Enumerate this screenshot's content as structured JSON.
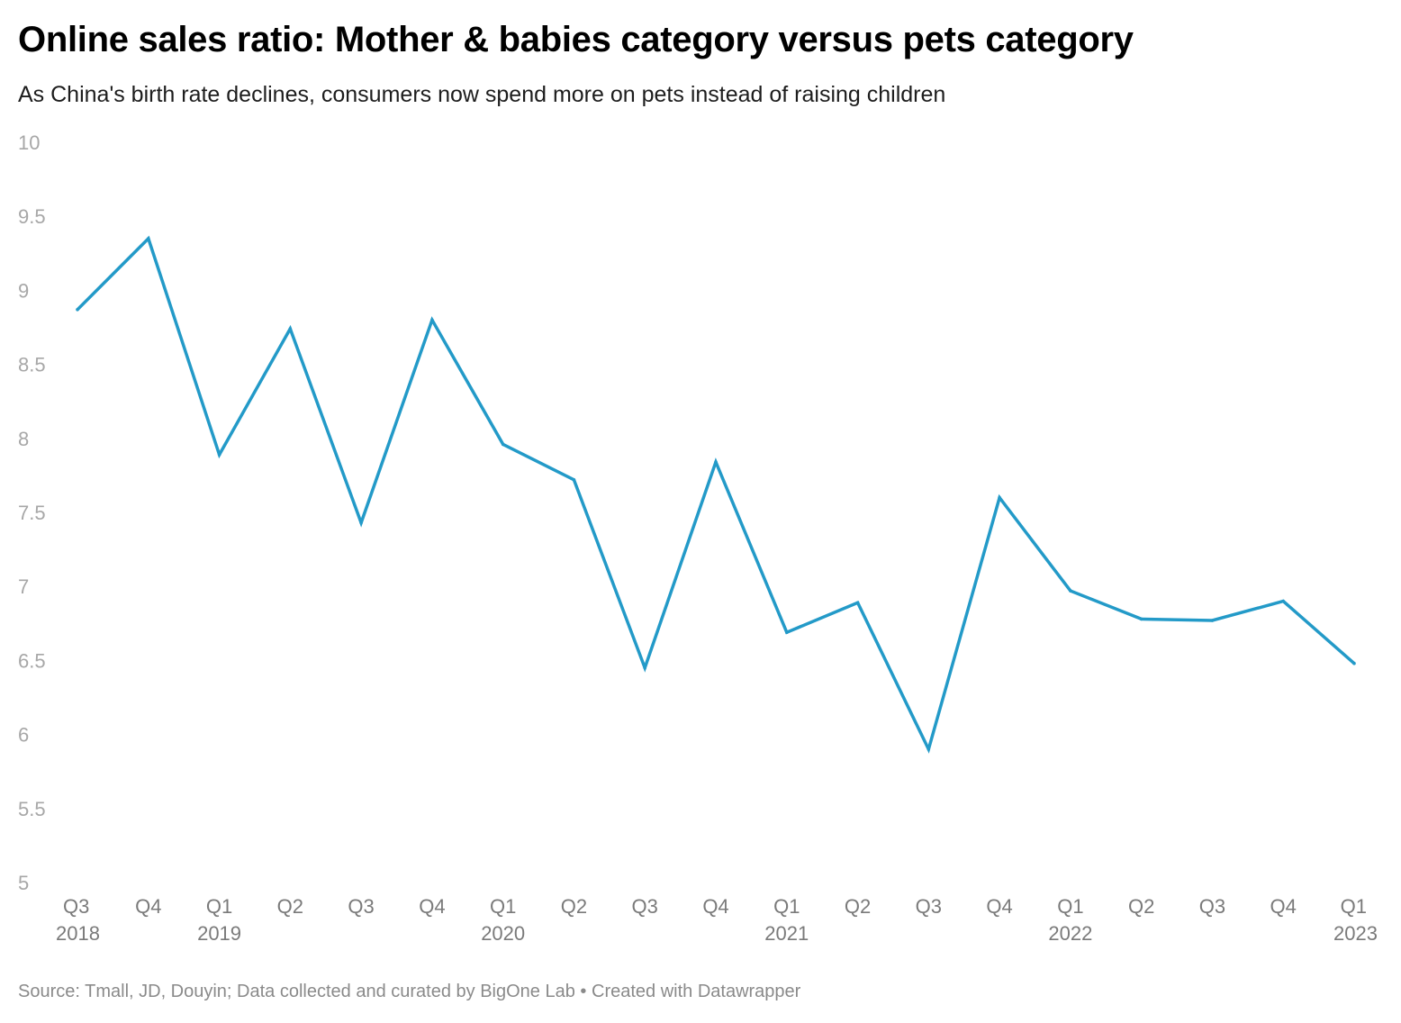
{
  "header": {
    "title": "Online sales ratio: Mother & babies category versus pets category",
    "subtitle": "As China's birth rate declines, consumers now spend more on pets instead of raising children"
  },
  "footer": {
    "source": "Source: Tmall, JD, Douyin; Data collected and curated by BigOne Lab",
    "separator": "•",
    "credit": "Created with Datawrapper"
  },
  "chart_data": {
    "type": "line",
    "title": "Online sales ratio: Mother & babies category versus pets category",
    "subtitle": "As China's birth rate declines, consumers now spend more on pets instead of raising children",
    "xlabel": "",
    "ylabel": "",
    "ylim": [
      5,
      10
    ],
    "yticks": [
      "10",
      "9.5",
      "9",
      "8.5",
      "8",
      "7.5",
      "7",
      "6.5",
      "6",
      "5.5",
      "5"
    ],
    "grid": false,
    "legend": "none",
    "line_color": "#239ac8",
    "categories": [
      "Q3",
      "Q4",
      "Q1",
      "Q2",
      "Q3",
      "Q4",
      "Q1",
      "Q2",
      "Q3",
      "Q4",
      "Q1",
      "Q2",
      "Q3",
      "Q4",
      "Q1",
      "Q2",
      "Q3",
      "Q4",
      "Q1"
    ],
    "year_labels": [
      "2018",
      "",
      "2019",
      "",
      "",
      "",
      "2020",
      "",
      "",
      "",
      "2021",
      "",
      "",
      "",
      "2022",
      "",
      "",
      "",
      "2023"
    ],
    "series": [
      {
        "name": "Online sales ratio",
        "values": [
          8.87,
          9.35,
          7.89,
          8.74,
          7.43,
          8.8,
          7.96,
          7.72,
          6.45,
          7.84,
          6.69,
          6.89,
          5.9,
          7.6,
          6.97,
          6.78,
          6.77,
          6.9,
          6.48
        ]
      }
    ]
  }
}
